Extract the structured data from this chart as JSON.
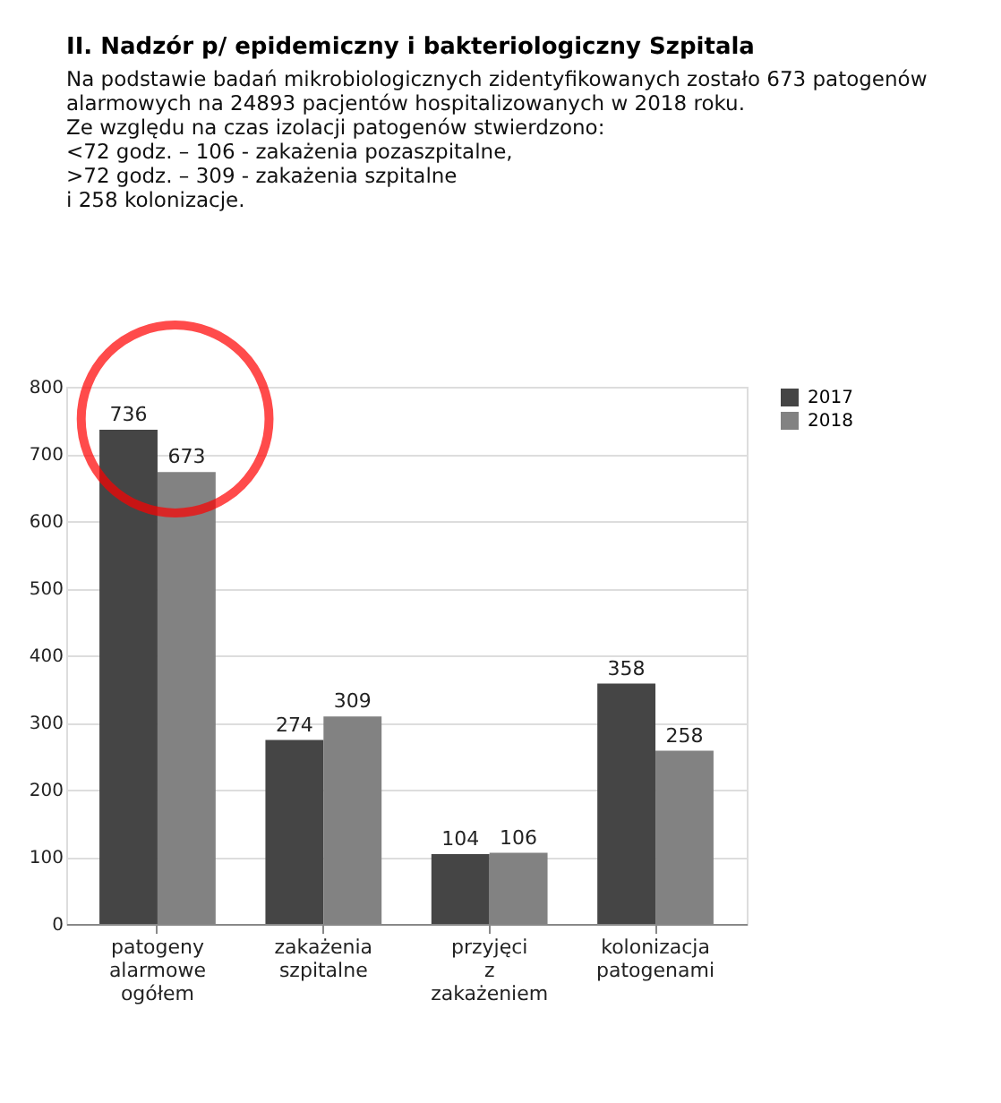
{
  "chart_data": {
    "type": "bar",
    "title": "II.    Nadzór p/ epidemiczny i bakteriologiczny Szpitala",
    "subtitle": "Na podstawie badań mikrobiologicznych zidentyfikowanych zostało 673 patogenów alarmowych na 24893 pacjentów hospitalizowanych w 2018 roku.",
    "annotations": [
      "Ze względu na czas izolacji patogenów stwierdzono:",
      "<72 godz. – 106 - zakażenia pozaszpitalne,",
      ">72 godz. – 309 - zakażenia szpitalne",
      "i 258 kolonizacje."
    ],
    "categories": [
      "patogeny alarmowe ogółem",
      "zakażenia szpitalne",
      "przyjęci z zakażeniem",
      "kolonizacja patogenami"
    ],
    "series": [
      {
        "name": "2017",
        "color": "#454545",
        "values": [
          736,
          274,
          104,
          358
        ]
      },
      {
        "name": "2018",
        "color": "#828282",
        "values": [
          673,
          309,
          106,
          258
        ]
      }
    ],
    "ylim": [
      0,
      800
    ],
    "yticks": [
      0,
      100,
      200,
      300,
      400,
      500,
      600,
      700,
      800
    ],
    "grid": "y",
    "legend": "right",
    "data_labels": true
  }
}
